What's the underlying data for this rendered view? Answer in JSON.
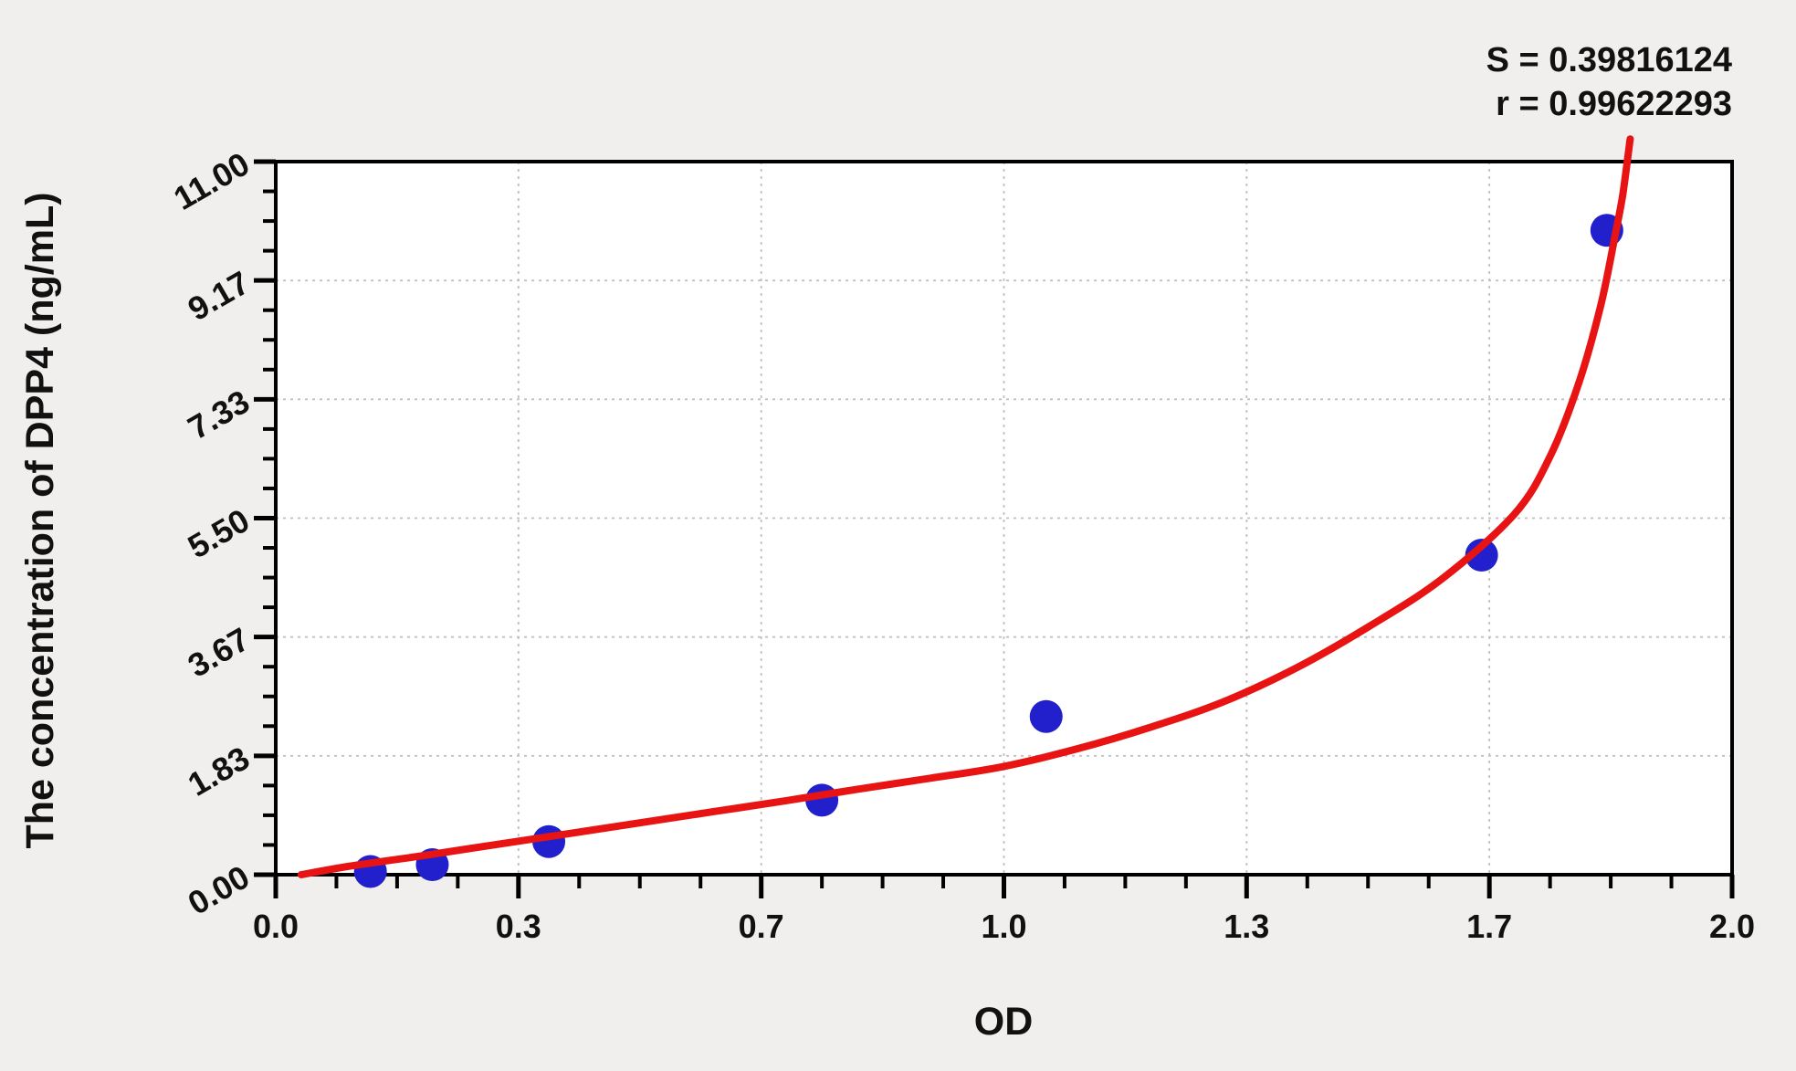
{
  "chart_data": {
    "type": "scatter",
    "title": "",
    "xlabel": "OD",
    "ylabel": "The concentration of DPP4 (ng/mL)",
    "xlim": [
      0,
      2
    ],
    "ylim": [
      0,
      11
    ],
    "x_ticks": {
      "values": [
        0,
        0.3333,
        0.6667,
        1.0,
        1.3333,
        1.6667,
        2.0
      ],
      "labels": [
        "0.0",
        "0.3",
        "0.7",
        "1.0",
        "1.3",
        "1.7",
        "2.0"
      ]
    },
    "y_ticks": {
      "values": [
        0,
        1.8333,
        3.6667,
        5.5,
        7.3333,
        9.1667,
        11.0
      ],
      "labels": [
        "0.00",
        "1.83",
        "3.67",
        "5.50",
        "7.33",
        "9.17",
        "11.00"
      ]
    },
    "minor_ticks_per_interval": 3,
    "grid": "dashed at major ticks",
    "legend_position": "none",
    "annotations": [
      "S = 0.39816124",
      "r = 0.99622293"
    ],
    "series": [
      {
        "name": "standard-points",
        "type": "scatter",
        "color": "#2120cc",
        "marker_radius": 18,
        "points": [
          [
            0.13,
            0.05
          ],
          [
            0.215,
            0.155
          ],
          [
            0.375,
            0.51
          ],
          [
            0.75,
            1.15
          ],
          [
            1.058,
            2.44
          ],
          [
            1.656,
            4.93
          ],
          [
            1.828,
            9.94
          ]
        ]
      },
      {
        "name": "fit-curve",
        "type": "line",
        "color": "#e81414",
        "points": [
          [
            0.035,
            0.0
          ],
          [
            0.1,
            0.13
          ],
          [
            0.2,
            0.29
          ],
          [
            0.3,
            0.46
          ],
          [
            0.4,
            0.63
          ],
          [
            0.5,
            0.8
          ],
          [
            0.6,
            0.97
          ],
          [
            0.7,
            1.14
          ],
          [
            0.8,
            1.32
          ],
          [
            0.9,
            1.49
          ],
          [
            1.0,
            1.67
          ],
          [
            1.1,
            1.94
          ],
          [
            1.2,
            2.27
          ],
          [
            1.3,
            2.66
          ],
          [
            1.4,
            3.18
          ],
          [
            1.5,
            3.82
          ],
          [
            1.6,
            4.55
          ],
          [
            1.7,
            5.55
          ],
          [
            1.75,
            6.45
          ],
          [
            1.79,
            7.6
          ],
          [
            1.82,
            8.8
          ],
          [
            1.84,
            9.9
          ],
          [
            1.85,
            10.5
          ],
          [
            1.86,
            11.35
          ]
        ]
      }
    ],
    "colors": {
      "background": "#f0efed",
      "plot_background": "#ffffff",
      "axis": "#000000",
      "gridline": "#c0c0c0",
      "point": "#2120cc",
      "curve": "#e81414"
    }
  }
}
